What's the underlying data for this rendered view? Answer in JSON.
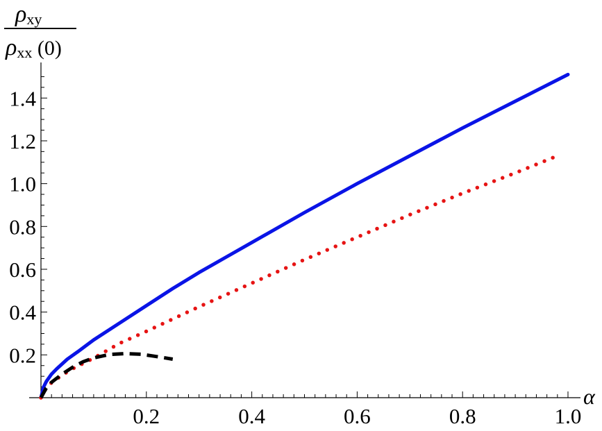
{
  "chart_data": {
    "type": "line",
    "title": "",
    "xlabel": "α",
    "ylabel": {
      "numerator": "ρ",
      "numerator_sub": "xy",
      "denominator": "ρ",
      "denominator_sub": "xx",
      "denominator_arg": " (0)"
    },
    "xlim": [
      0,
      1.0
    ],
    "ylim": [
      0,
      1.55
    ],
    "x_ticks": [
      "0.2",
      "0.4",
      "0.6",
      "0.8",
      "1.0"
    ],
    "y_ticks": [
      "0.2",
      "0.4",
      "0.6",
      "0.8",
      "1.0",
      "1.2",
      "1.4"
    ],
    "grid": false,
    "series": [
      {
        "style": "solid",
        "color": "#0a14e6",
        "x": [
          0,
          0.005,
          0.01,
          0.02,
          0.03,
          0.05,
          0.07,
          0.1,
          0.15,
          0.2,
          0.25,
          0.3,
          0.35,
          0.4,
          0.5,
          0.6,
          0.7,
          0.8,
          0.9,
          1.0
        ],
        "y": [
          0,
          0.05,
          0.075,
          0.11,
          0.135,
          0.18,
          0.215,
          0.27,
          0.35,
          0.43,
          0.51,
          0.585,
          0.655,
          0.725,
          0.865,
          1.0,
          1.13,
          1.26,
          1.385,
          1.51
        ]
      },
      {
        "style": "dotted",
        "color": "#e61414",
        "x": [
          0,
          0.01,
          0.02,
          0.04,
          0.06,
          0.08,
          0.1,
          0.15,
          0.2,
          0.3,
          0.4,
          0.5,
          0.6,
          0.7,
          0.8,
          0.9,
          0.98
        ],
        "y": [
          0,
          0.045,
          0.07,
          0.105,
          0.135,
          0.16,
          0.185,
          0.255,
          0.31,
          0.425,
          0.535,
          0.645,
          0.75,
          0.855,
          0.955,
          1.05,
          1.13
        ]
      },
      {
        "style": "dashed",
        "color": "#000000",
        "x": [
          0,
          0.01,
          0.02,
          0.04,
          0.06,
          0.08,
          0.1,
          0.13,
          0.16,
          0.19,
          0.22,
          0.25
        ],
        "y": [
          0,
          0.045,
          0.072,
          0.11,
          0.142,
          0.168,
          0.186,
          0.202,
          0.206,
          0.203,
          0.192,
          0.18
        ]
      }
    ]
  }
}
